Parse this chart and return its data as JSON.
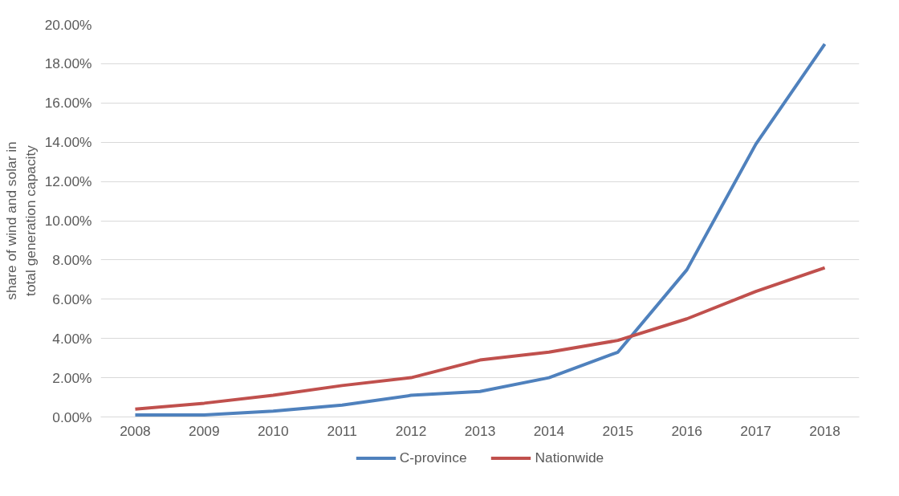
{
  "chart_data": {
    "type": "line",
    "ylabel": "share of wind and solar in total generation capacity",
    "categories": [
      "2008",
      "2009",
      "2010",
      "2011",
      "2012",
      "2013",
      "2014",
      "2015",
      "2016",
      "2017",
      "2018"
    ],
    "series": [
      {
        "name": "C-province",
        "color": "#4f81bd",
        "values": [
          0.1,
          0.1,
          0.3,
          0.6,
          1.1,
          1.3,
          2.0,
          3.3,
          7.5,
          13.9,
          19.0
        ]
      },
      {
        "name": "Nationwide",
        "color": "#c0504d",
        "values": [
          0.4,
          0.7,
          1.1,
          1.6,
          2.0,
          2.9,
          3.3,
          3.9,
          5.0,
          6.4,
          7.6
        ]
      }
    ],
    "ylim": [
      0,
      20
    ],
    "yticks": [
      {
        "value": 0,
        "label": "0.00%"
      },
      {
        "value": 2,
        "label": "2.00%"
      },
      {
        "value": 4,
        "label": "4.00%"
      },
      {
        "value": 6,
        "label": "6.00%"
      },
      {
        "value": 8,
        "label": "8.00%"
      },
      {
        "value": 10,
        "label": "10.00%"
      },
      {
        "value": 12,
        "label": "12.00%"
      },
      {
        "value": 14,
        "label": "14.00%"
      },
      {
        "value": 16,
        "label": "16.00%"
      },
      {
        "value": 18,
        "label": "18.00%"
      },
      {
        "value": 20,
        "label": "20.00%"
      }
    ],
    "grid": "y",
    "legend": "bottom",
    "marker": "none",
    "line_style": "solid"
  }
}
